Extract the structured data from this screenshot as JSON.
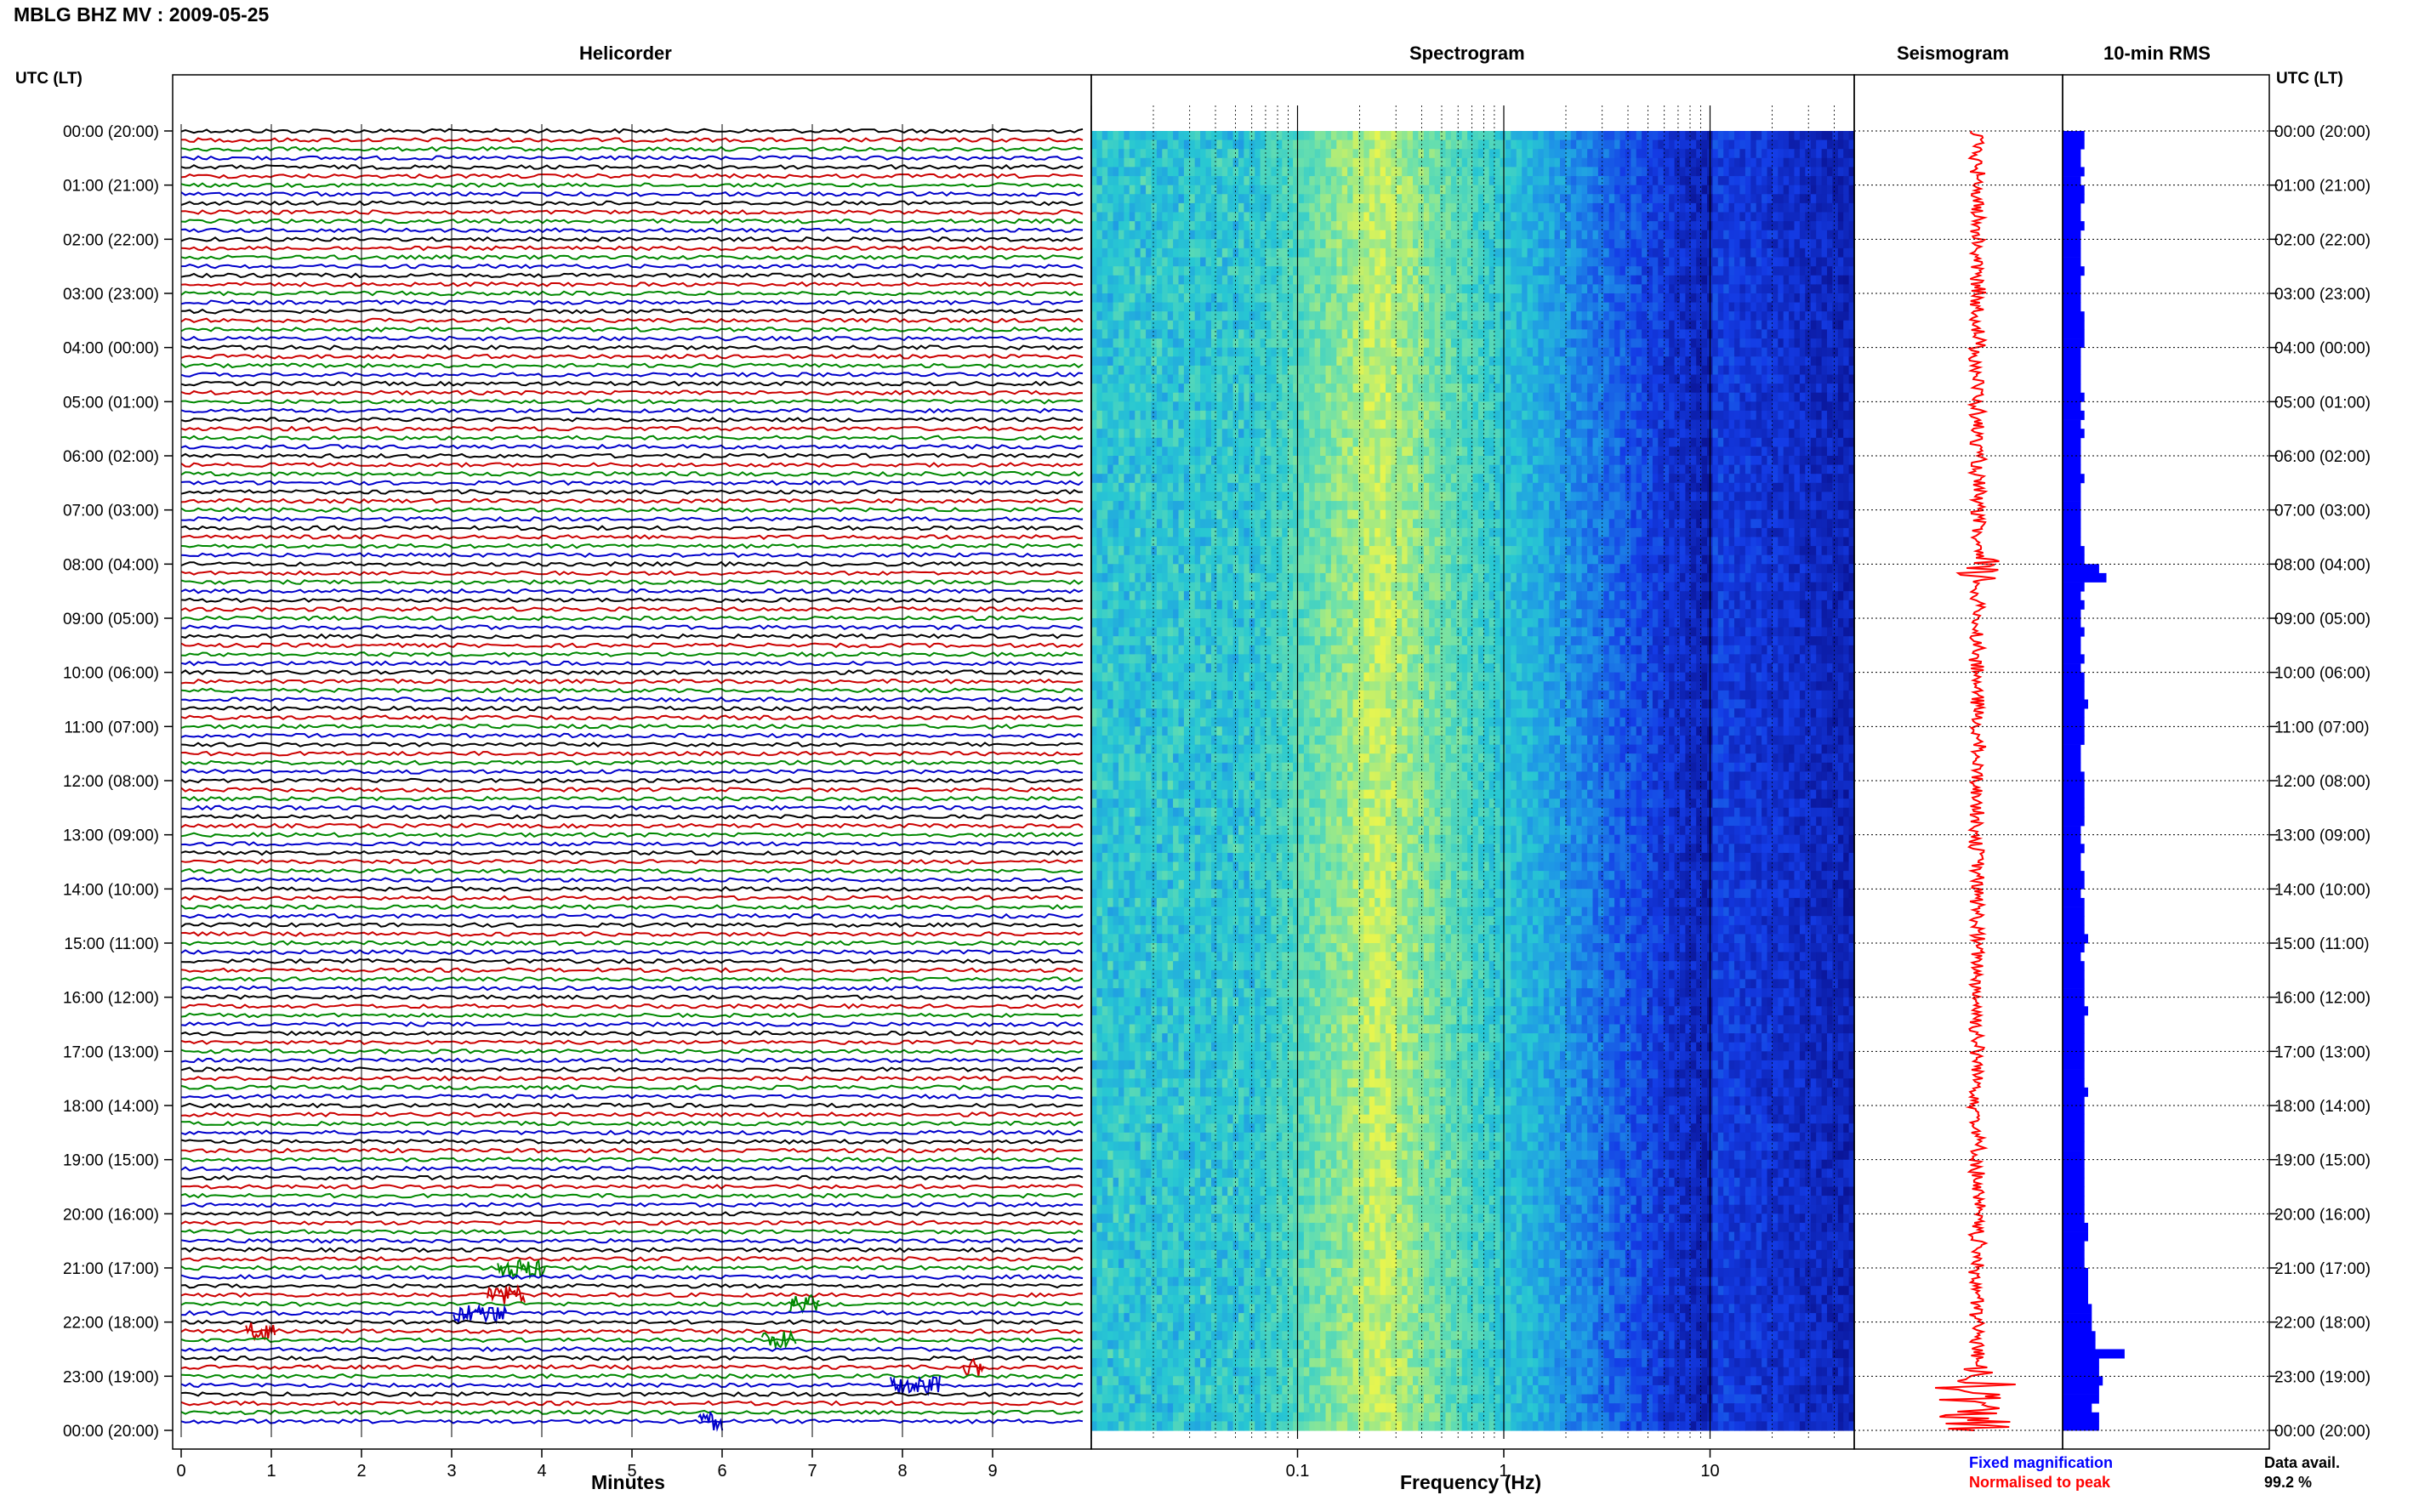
{
  "header": {
    "title": "MBLG BHZ MV : 2009-05-25"
  },
  "panel_titles": {
    "helicorder": "Helicorder",
    "spectrogram": "Spectrogram",
    "seismogram": "Seismogram",
    "rms": "10-min RMS"
  },
  "axis_header": {
    "left": "UTC (LT)",
    "right": "UTC (LT)"
  },
  "axis_labels": {
    "minutes": "Minutes",
    "frequency": "Frequency (Hz)"
  },
  "legend": {
    "fixed": "Fixed magnification",
    "normalised": "Normalised to peak",
    "fixed_color": "#0000ff",
    "normalised_color": "#ff0000"
  },
  "data_avail": {
    "label": "Data avail.",
    "value": "99.2 %"
  },
  "colors": {
    "trace_cycle": [
      "#000000",
      "#cc0000",
      "#008800",
      "#0000cc"
    ],
    "seismogram": "#ff0000",
    "rms_bar": "#0000ff"
  },
  "chart_data": {
    "type": "heatmap",
    "time_labels": [
      "00:00 (20:00)",
      "01:00 (21:00)",
      "02:00 (22:00)",
      "03:00 (23:00)",
      "04:00 (00:00)",
      "05:00 (01:00)",
      "06:00 (02:00)",
      "07:00 (03:00)",
      "08:00 (04:00)",
      "09:00 (05:00)",
      "10:00 (06:00)",
      "11:00 (07:00)",
      "12:00 (08:00)",
      "13:00 (09:00)",
      "14:00 (10:00)",
      "15:00 (11:00)",
      "16:00 (12:00)",
      "17:00 (13:00)",
      "18:00 (14:00)",
      "19:00 (15:00)",
      "20:00 (16:00)",
      "21:00 (17:00)",
      "22:00 (18:00)",
      "23:00 (19:00)",
      "00:00 (20:00)"
    ],
    "minutes_ticks": [
      "0",
      "1",
      "2",
      "3",
      "4",
      "5",
      "6",
      "7",
      "8",
      "9"
    ],
    "minutes_range": [
      0,
      10
    ],
    "frequency_ticks": [
      "0.1",
      "1",
      "10"
    ],
    "frequency_range_hz": [
      0.01,
      50
    ],
    "frequency_scale": "log",
    "helicorder_rows": 144,
    "rms": {
      "interval": "10 min",
      "values": [
        6,
        6,
        5,
        5,
        6,
        5,
        6,
        6,
        5,
        5,
        6,
        5,
        5,
        5,
        5,
        6,
        5,
        5,
        5,
        5,
        6,
        6,
        6,
        6,
        5,
        5,
        5,
        5,
        5,
        6,
        5,
        6,
        5,
        6,
        5,
        5,
        5,
        5,
        6,
        5,
        5,
        5,
        5,
        5,
        5,
        5,
        6,
        6,
        10,
        12,
        6,
        5,
        6,
        5,
        5,
        6,
        5,
        5,
        6,
        5,
        6,
        6,
        6,
        7,
        6,
        6,
        6,
        6,
        5,
        5,
        5,
        6,
        6,
        6,
        6,
        6,
        6,
        5,
        5,
        6,
        5,
        5,
        6,
        6,
        5,
        6,
        6,
        6,
        6,
        7,
        6,
        5,
        6,
        6,
        6,
        6,
        6,
        7,
        6,
        6,
        6,
        6,
        6,
        6,
        6,
        6,
        7,
        6,
        6,
        6,
        6,
        6,
        6,
        6,
        6,
        6,
        6,
        6,
        6,
        6,
        6,
        7,
        7,
        6,
        6,
        6,
        7,
        7,
        7,
        7,
        8,
        8,
        8,
        9,
        9,
        17,
        10,
        10,
        11,
        10,
        10,
        8,
        10,
        10
      ]
    }
  }
}
